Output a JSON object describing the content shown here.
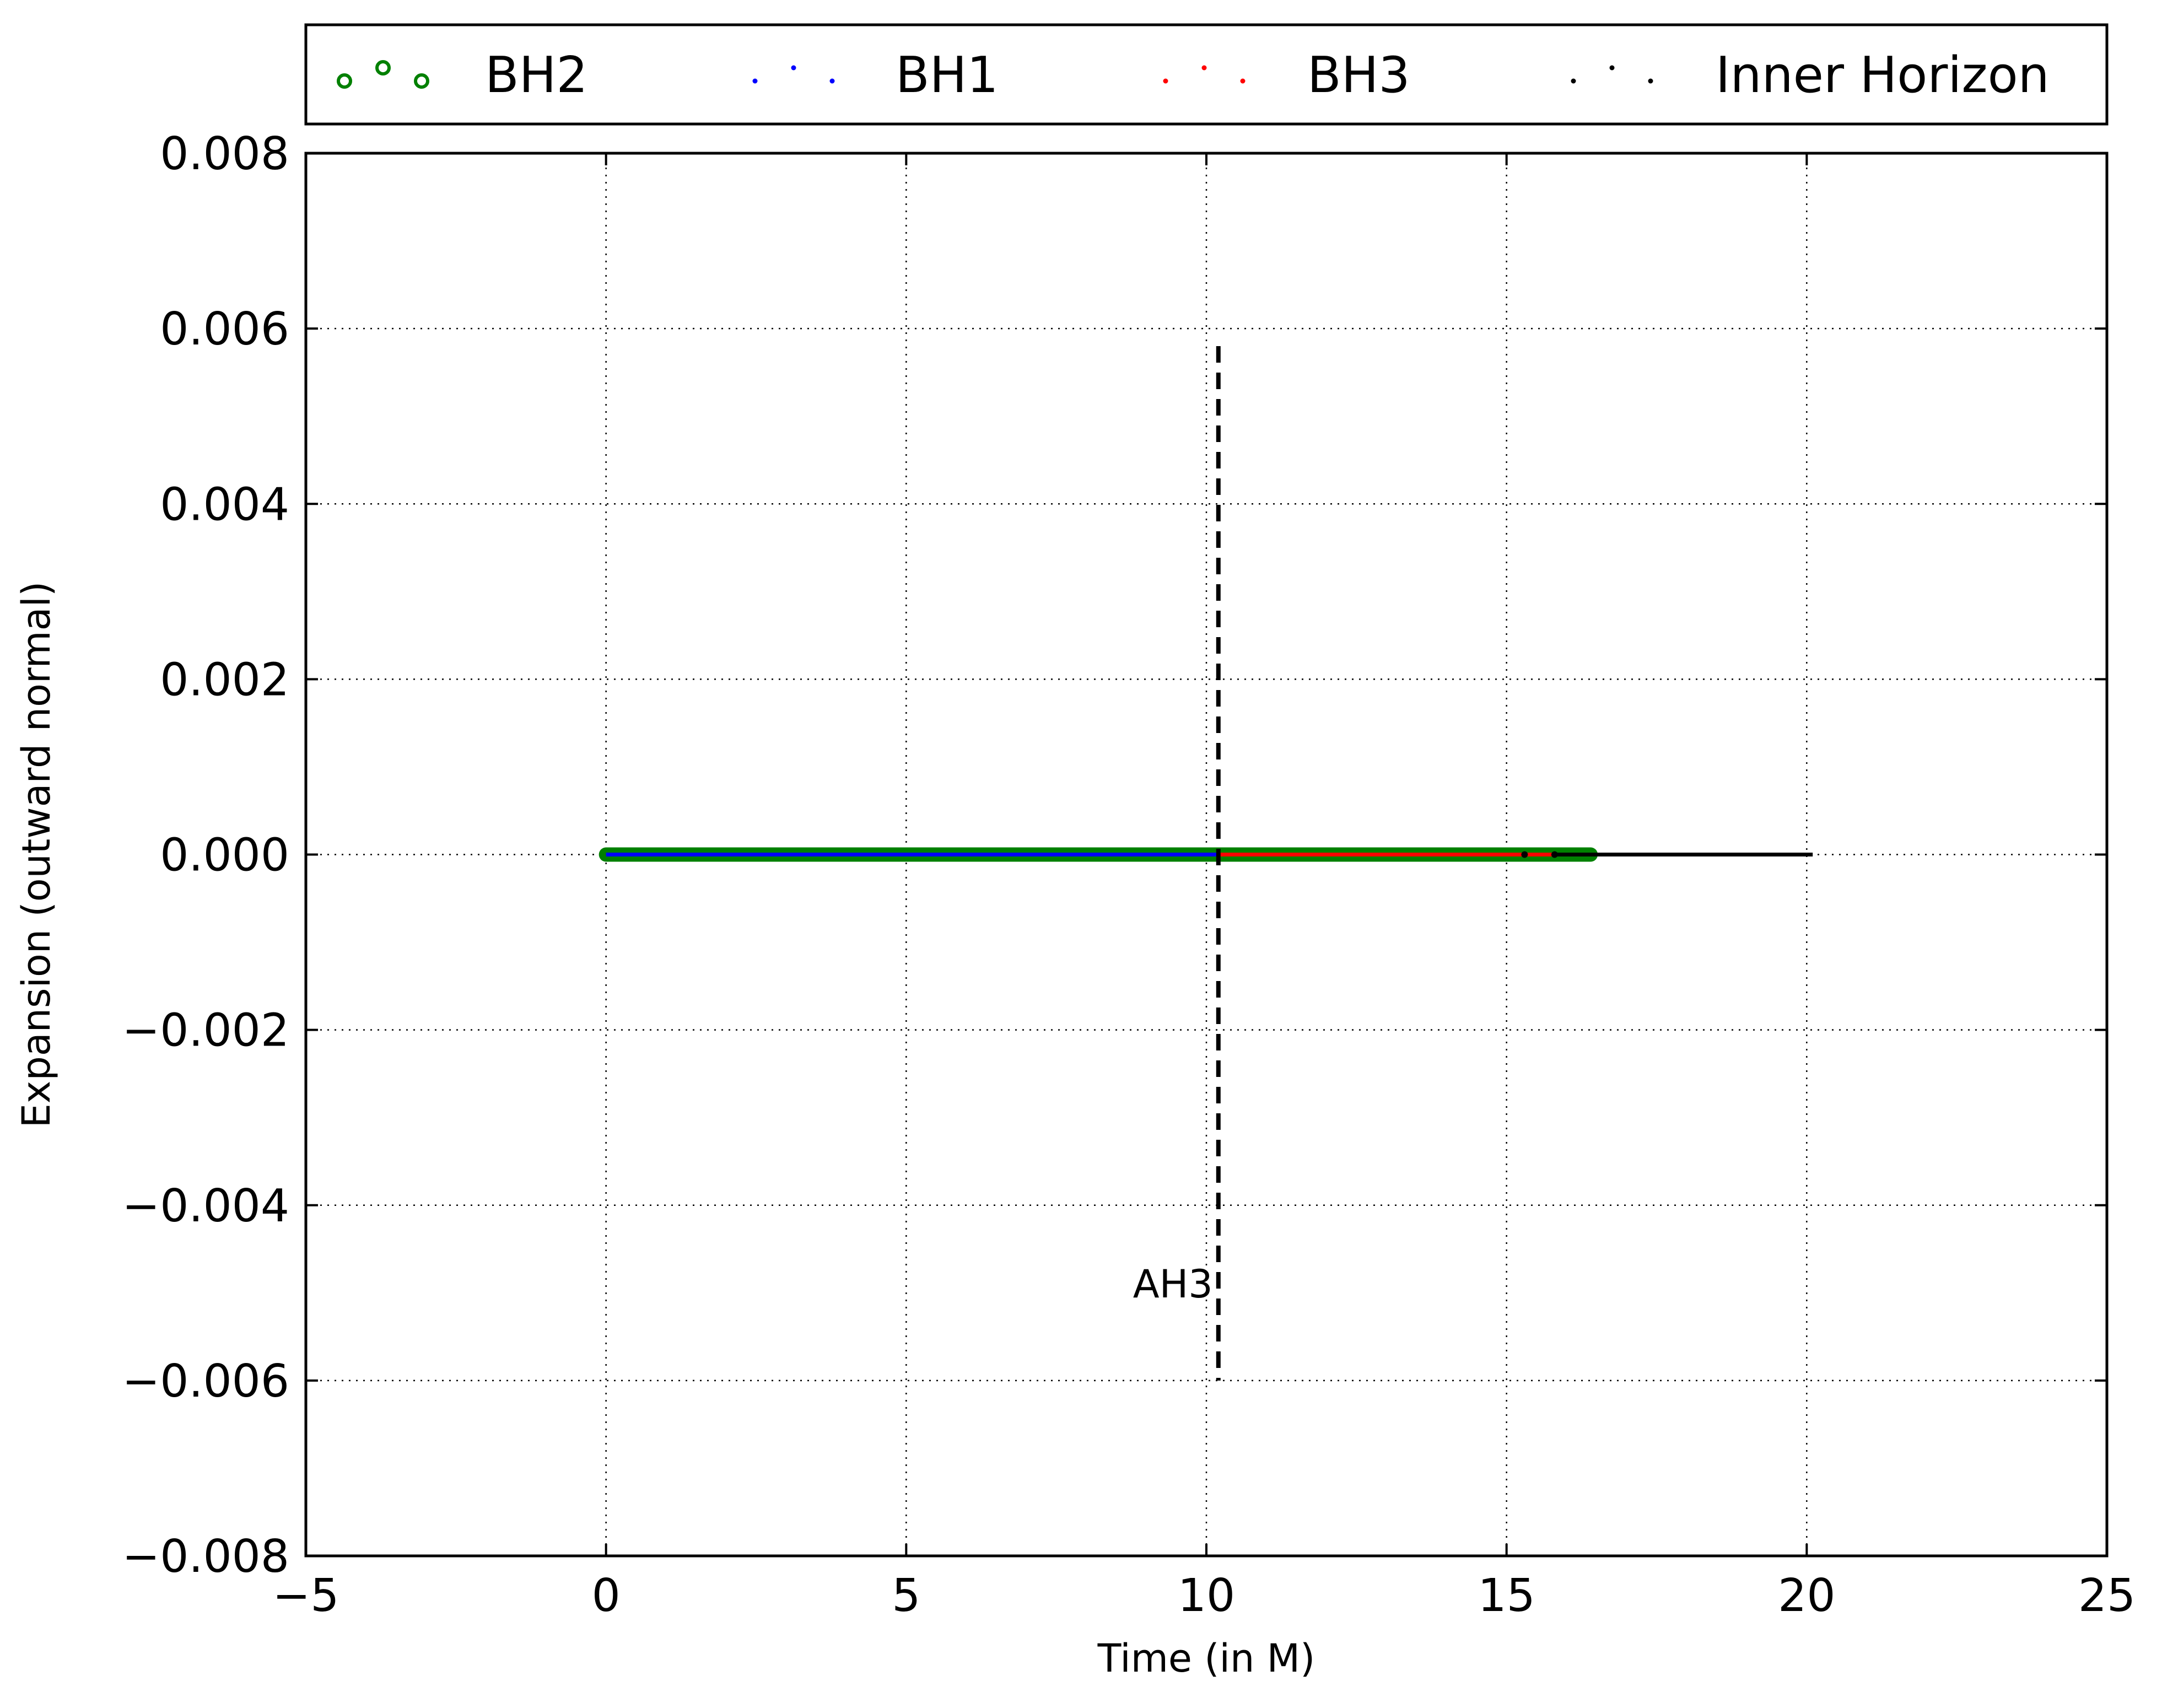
{
  "chart_data": {
    "type": "line",
    "xlabel": "Time (in M)",
    "ylabel": "Expansion (outward normal)",
    "xlim": [
      -5,
      25
    ],
    "ylim": [
      -0.008,
      0.008
    ],
    "xticks": [
      -5,
      0,
      5,
      10,
      15,
      20,
      25
    ],
    "xtick_labels": [
      "−5",
      "0",
      "5",
      "10",
      "15",
      "20",
      "25"
    ],
    "yticks": [
      0.008,
      0.006,
      0.004,
      0.002,
      0.0,
      -0.002,
      -0.004,
      -0.006,
      -0.008
    ],
    "ytick_labels": [
      "0.008",
      "0.006",
      "0.004",
      "0.002",
      "0.000",
      "−0.002",
      "−0.004",
      "−0.006",
      "−0.008"
    ],
    "grid": true,
    "legend_position": "top, above plot",
    "series": [
      {
        "name": "BH2",
        "color": "#008000",
        "marker": "open-circle",
        "x": [
          0,
          16.4
        ],
        "y": [
          0,
          0
        ]
      },
      {
        "name": "BH1",
        "color": "#0000ff",
        "marker": "point",
        "x": [
          0,
          10.2
        ],
        "y": [
          0,
          0
        ]
      },
      {
        "name": "BH3",
        "color": "#ff0000",
        "marker": "point",
        "x": [
          10.2,
          15.8
        ],
        "y": [
          0,
          0
        ]
      },
      {
        "name": "Inner Horizon",
        "color": "#000000",
        "marker": "point",
        "x": [
          15.8,
          20.1
        ],
        "y": [
          0,
          0
        ]
      }
    ],
    "annotations": [
      {
        "text": "AH3",
        "x": 10.2,
        "y": -0.0049,
        "line": {
          "x": 10.2,
          "y_from": 0.0058,
          "y_to": -0.006,
          "style": "dashed",
          "color": "#000000"
        }
      }
    ]
  }
}
